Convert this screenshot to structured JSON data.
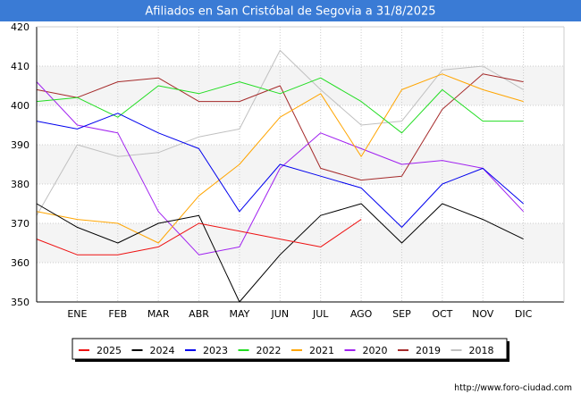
{
  "colors": {
    "title_bg": "#3a7bd5",
    "band": "#f4f4f4",
    "grid": "#cccccc",
    "axis": "#000000"
  },
  "chart_data": {
    "type": "line",
    "title": "Afiliados en San Cristóbal de Segovia a 31/8/2025",
    "xlabel": "",
    "ylabel": "",
    "categories": [
      "",
      "ENE",
      "FEB",
      "MAR",
      "ABR",
      "MAY",
      "JUN",
      "JUL",
      "AGO",
      "SEP",
      "OCT",
      "NOV",
      "DIC"
    ],
    "ylim": [
      350,
      420
    ],
    "yticks": [
      350,
      360,
      370,
      380,
      390,
      400,
      410,
      420
    ],
    "grid": true,
    "legend_position": "bottom",
    "series": [
      {
        "name": "2025",
        "color": "#ee1111",
        "values": [
          366,
          362,
          362,
          364,
          370,
          368,
          366,
          364,
          371,
          null,
          null,
          null,
          null
        ]
      },
      {
        "name": "2024",
        "color": "#000000",
        "values": [
          375,
          369,
          365,
          370,
          372,
          350,
          362,
          372,
          375,
          365,
          375,
          371,
          366
        ]
      },
      {
        "name": "2023",
        "color": "#0000ee",
        "values": [
          396,
          394,
          398,
          393,
          389,
          373,
          385,
          382,
          379,
          369,
          380,
          384,
          375
        ]
      },
      {
        "name": "2022",
        "color": "#22dd22",
        "values": [
          401,
          402,
          397,
          405,
          403,
          406,
          403,
          407,
          401,
          393,
          404,
          396,
          396
        ]
      },
      {
        "name": "2021",
        "color": "#ffa500",
        "values": [
          373,
          371,
          370,
          365,
          377,
          385,
          397,
          403,
          387,
          404,
          408,
          404,
          401
        ]
      },
      {
        "name": "2020",
        "color": "#a020f0",
        "values": [
          406,
          395,
          393,
          373,
          362,
          364,
          384,
          393,
          389,
          385,
          386,
          384,
          373
        ]
      },
      {
        "name": "2019",
        "color": "#a52a2a",
        "values": [
          404,
          402,
          406,
          407,
          401,
          401,
          405,
          384,
          381,
          382,
          399,
          408,
          406
        ]
      },
      {
        "name": "2018",
        "color": "#c0c0c0",
        "values": [
          372,
          390,
          387,
          388,
          392,
          394,
          414,
          404,
          395,
          396,
          409,
          410,
          404
        ]
      }
    ]
  },
  "watermark": "http://www.foro-ciudad.com"
}
